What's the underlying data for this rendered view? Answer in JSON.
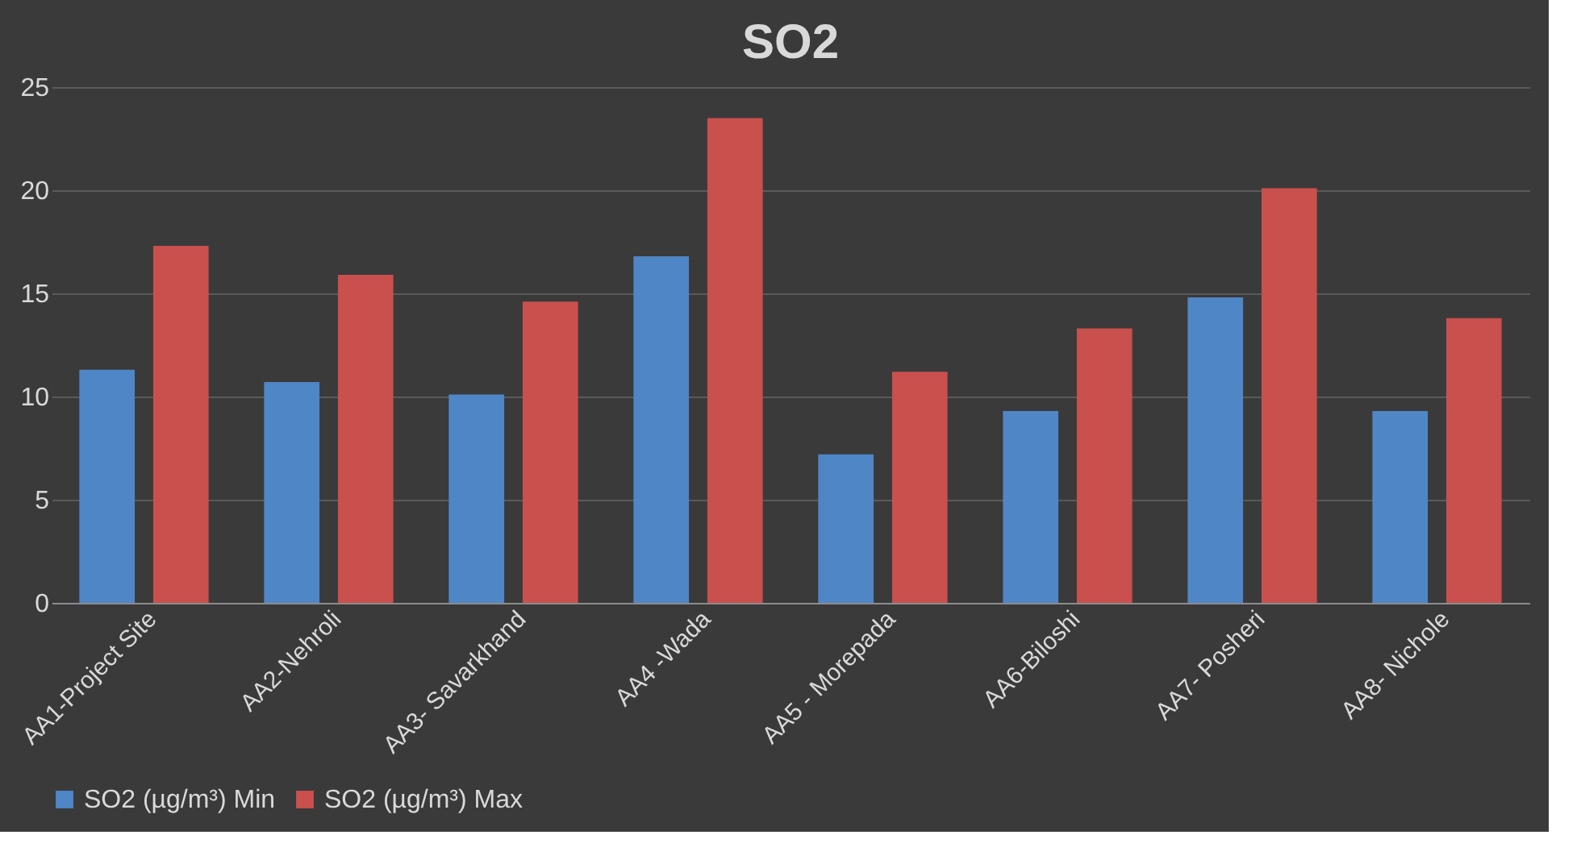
{
  "chart_data": {
    "type": "bar",
    "title": "SO2",
    "categories": [
      "AA1-Project Site",
      "AA2-Nehroli",
      "AA3- Savarkhand",
      "AA4 -Wada",
      "AA5 - Morepada",
      "AA6-Biloshi",
      "AA7- Posheri",
      "AA8- Nichole"
    ],
    "series": [
      {
        "name": "SO2 (µg/m³) Min",
        "color": "#4f86c6",
        "values": [
          11.3,
          10.7,
          10.1,
          16.8,
          7.2,
          9.3,
          14.8,
          9.3
        ]
      },
      {
        "name": "SO2 (µg/m³) Max",
        "color": "#c9504d",
        "values": [
          17.3,
          15.9,
          14.6,
          23.5,
          11.2,
          13.3,
          20.1,
          13.8
        ]
      }
    ],
    "ylim": [
      0,
      25
    ],
    "yticks": [
      0,
      5,
      10,
      15,
      20,
      25
    ],
    "grid": "y",
    "legend": "bottom"
  }
}
